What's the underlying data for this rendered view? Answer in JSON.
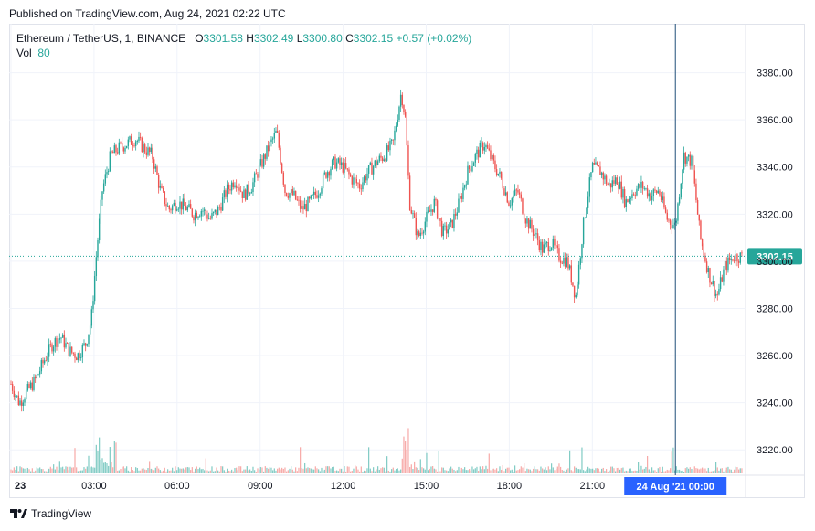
{
  "header": {
    "published": "Published on TradingView.com, Aug 24, 2021 02:22 UTC"
  },
  "legend": {
    "symbol": "Ethereum / TetherUS, 1, BINANCE",
    "o_label": "O",
    "o_value": "3301.58",
    "h_label": "H",
    "h_value": "3302.49",
    "l_label": "L",
    "l_value": "3300.80",
    "c_label": "C",
    "c_value": "3302.15",
    "change": "+0.57 (+0.02%)",
    "vol_label": "Vol",
    "vol_value": "80"
  },
  "footer": {
    "brand": "TradingView"
  },
  "colors": {
    "up": "#26a69a",
    "down": "#ef5350",
    "vol_up": "#80cbc4",
    "vol_down": "#f7a9a7",
    "price_label": "#26a69a",
    "crosshair_label": "#2962ff"
  },
  "chart_data": {
    "type": "candlestick",
    "ylim": [
      3210,
      3400
    ],
    "y_ticks": [
      "3220.00",
      "3240.00",
      "3260.00",
      "3280.00",
      "3300.00",
      "3320.00",
      "3340.00",
      "3360.00",
      "3380.00"
    ],
    "y_tick_values": [
      3220,
      3240,
      3260,
      3280,
      3300,
      3320,
      3340,
      3360,
      3380
    ],
    "x_ticks": [
      "23",
      "03:00",
      "06:00",
      "09:00",
      "12:00",
      "15:00",
      "18:00",
      "21:00"
    ],
    "x_tick_hours": [
      0,
      3,
      6,
      9,
      12,
      15,
      18,
      21
    ],
    "x_range_hours": [
      0,
      26.6
    ],
    "crosshair_label": "24 Aug '21   00:00",
    "crosshair_hour": 24,
    "last_price": 3302.15,
    "last_price_label": "3302.15",
    "series": [
      {
        "name": "",
        "x_hours": [
          0,
          0.3,
          0.6,
          0.9,
          1.2,
          1.5,
          1.8,
          2.1,
          2.4,
          2.7,
          2.9,
          3.1,
          3.3,
          3.6,
          3.9,
          4.2,
          4.5,
          4.8,
          5.1,
          5.4,
          5.7,
          6.0,
          6.3,
          6.6,
          6.9,
          7.2,
          7.5,
          7.8,
          8.1,
          8.4,
          8.7,
          9.0,
          9.3,
          9.6,
          9.9,
          10.2,
          10.5,
          10.8,
          11.1,
          11.4,
          11.7,
          12.0,
          12.3,
          12.6,
          12.9,
          13.2,
          13.5,
          13.8,
          14.1,
          14.25,
          14.4,
          14.7,
          15.0,
          15.3,
          15.6,
          15.9,
          16.2,
          16.5,
          16.8,
          17.1,
          17.4,
          17.7,
          18.0,
          18.3,
          18.6,
          18.9,
          19.2,
          19.5,
          19.8,
          20.1,
          20.4,
          20.7,
          21.0,
          21.3,
          21.6,
          21.9,
          22.2,
          22.5,
          22.8,
          23.1,
          23.4,
          23.7,
          24.0,
          24.3,
          24.6,
          24.9,
          25.2,
          25.5,
          25.8,
          26.1,
          26.4
        ],
        "close": [
          3248,
          3240,
          3245,
          3250,
          3258,
          3265,
          3268,
          3262,
          3260,
          3265,
          3275,
          3305,
          3330,
          3345,
          3348,
          3350,
          3352,
          3348,
          3345,
          3330,
          3322,
          3325,
          3323,
          3320,
          3322,
          3318,
          3322,
          3330,
          3335,
          3328,
          3332,
          3340,
          3348,
          3355,
          3330,
          3328,
          3322,
          3325,
          3330,
          3338,
          3342,
          3340,
          3335,
          3332,
          3338,
          3342,
          3345,
          3350,
          3372,
          3360,
          3325,
          3310,
          3318,
          3325,
          3312,
          3315,
          3325,
          3338,
          3345,
          3350,
          3342,
          3335,
          3325,
          3330,
          3318,
          3312,
          3305,
          3308,
          3302,
          3300,
          3285,
          3318,
          3340,
          3338,
          3332,
          3335,
          3325,
          3330,
          3332,
          3328,
          3330,
          3318,
          3315,
          3345,
          3342,
          3310,
          3295,
          3285,
          3298,
          3302,
          3302
        ]
      }
    ]
  }
}
